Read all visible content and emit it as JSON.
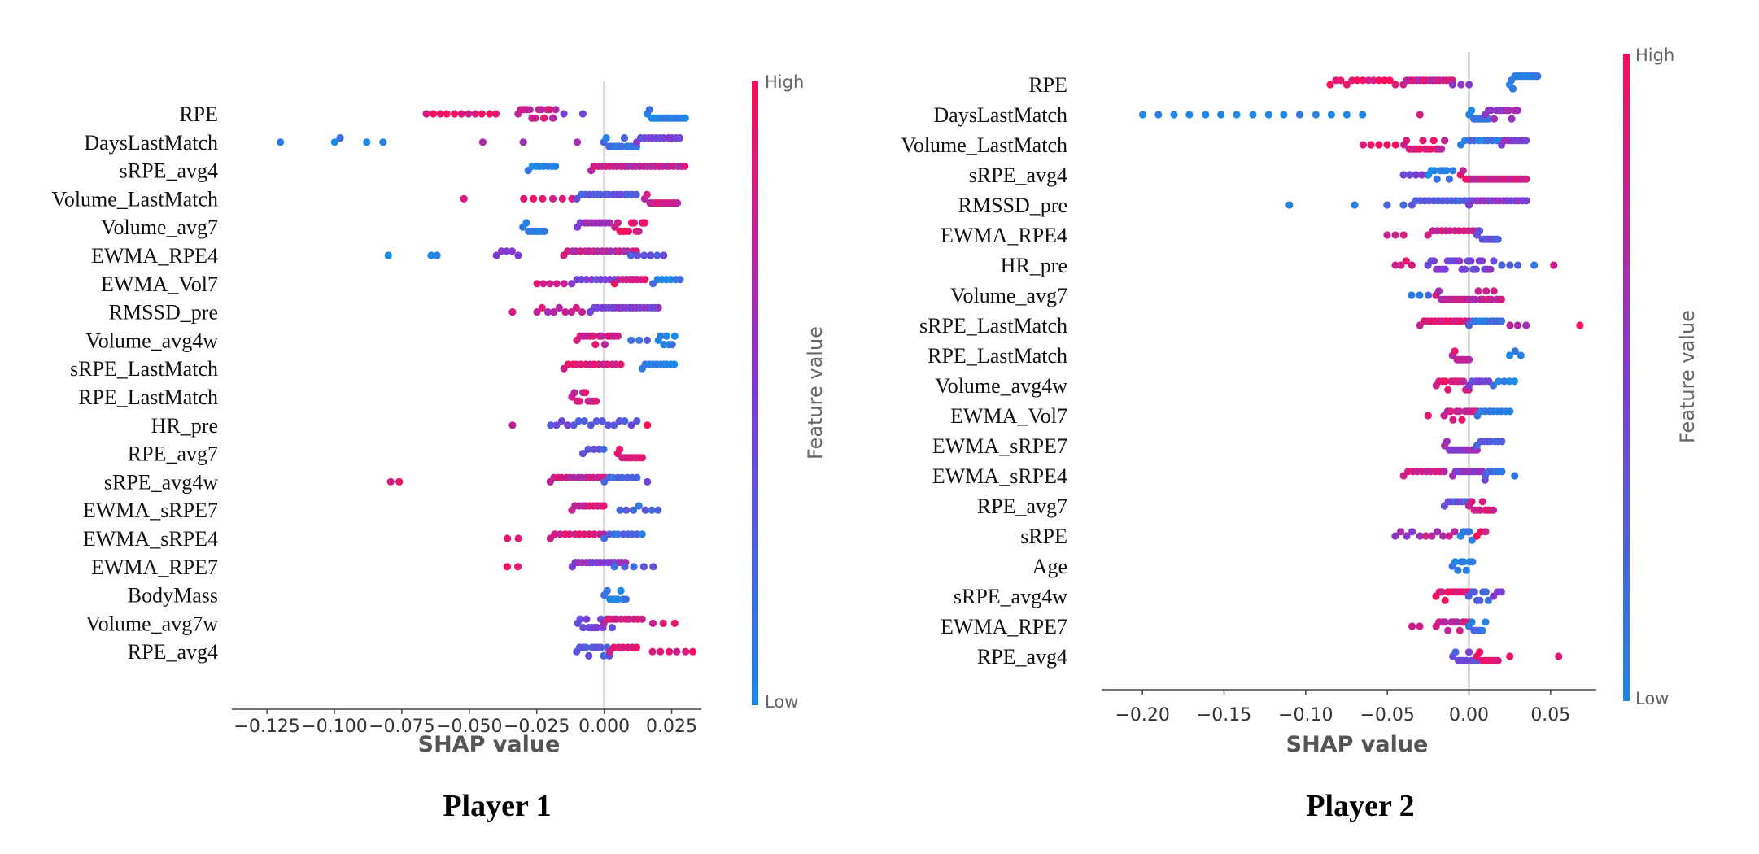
{
  "colors": {
    "low": "#1e88e5",
    "high": "#ff0d57",
    "axis": "#444444",
    "zero_line": "#d9d9d9"
  },
  "chart_data": [
    {
      "type": "scatter",
      "subtype": "shap-beeswarm",
      "title": "Player 1",
      "xlabel": "SHAP value",
      "colorbar": {
        "label": "Feature value",
        "high": "High",
        "low": "Low"
      },
      "xlim": [
        -0.138,
        0.036
      ],
      "xticks": [
        -0.125,
        -0.1,
        -0.075,
        -0.05,
        -0.025,
        0.0,
        0.025
      ],
      "xtick_labels": [
        "−0.125",
        "−0.100",
        "−0.075",
        "−0.050",
        "−0.025",
        "0.000",
        "0.025"
      ],
      "features": [
        {
          "name": "RPE",
          "groups": [
            [
              -0.066,
              -0.04,
              0.9,
              11
            ],
            [
              -0.032,
              -0.018,
              0.8,
              14
            ],
            [
              -0.015,
              -0.008,
              0.5,
              2
            ],
            [
              0.016,
              0.03,
              0.05,
              18
            ]
          ]
        },
        {
          "name": "DaysLastMatch",
          "groups": [
            [
              -0.12,
              -0.12,
              0.0,
              1
            ],
            [
              -0.1,
              -0.098,
              0.05,
              2
            ],
            [
              -0.088,
              -0.082,
              0.0,
              2
            ],
            [
              -0.045,
              -0.045,
              0.6,
              1
            ],
            [
              -0.03,
              -0.03,
              0.6,
              1
            ],
            [
              -0.01,
              -0.01,
              0.6,
              1
            ],
            [
              0.0,
              0.012,
              0.1,
              14
            ],
            [
              0.012,
              0.028,
              0.45,
              12
            ]
          ]
        },
        {
          "name": "sRPE_avg4",
          "groups": [
            [
              -0.028,
              -0.018,
              0.05,
              8
            ],
            [
              -0.005,
              0.03,
              0.75,
              26
            ]
          ]
        },
        {
          "name": "Volume_LastMatch",
          "groups": [
            [
              -0.052,
              -0.052,
              0.9,
              1
            ],
            [
              -0.03,
              -0.012,
              0.85,
              6
            ],
            [
              -0.01,
              0.012,
              0.3,
              16
            ],
            [
              0.015,
              0.027,
              0.8,
              14
            ]
          ]
        },
        {
          "name": "Volume_avg7",
          "groups": [
            [
              -0.03,
              -0.022,
              0.05,
              9
            ],
            [
              -0.01,
              0.002,
              0.55,
              10
            ],
            [
              0.004,
              0.015,
              0.9,
              12
            ]
          ]
        },
        {
          "name": "EWMA_RPE4",
          "groups": [
            [
              -0.08,
              -0.08,
              0.0,
              1
            ],
            [
              -0.064,
              -0.062,
              0.05,
              2
            ],
            [
              -0.04,
              -0.032,
              0.6,
              5
            ],
            [
              -0.015,
              0.012,
              0.75,
              18
            ],
            [
              0.01,
              0.022,
              0.35,
              6
            ]
          ]
        },
        {
          "name": "EWMA_Vol7",
          "groups": [
            [
              -0.025,
              -0.015,
              0.8,
              5
            ],
            [
              -0.012,
              0.004,
              0.45,
              10
            ],
            [
              0.004,
              0.015,
              0.85,
              9
            ],
            [
              0.018,
              0.028,
              0.1,
              7
            ]
          ]
        },
        {
          "name": "RMSSD_pre",
          "groups": [
            [
              -0.034,
              -0.034,
              0.85,
              1
            ],
            [
              -0.025,
              -0.008,
              0.75,
              9
            ],
            [
              -0.005,
              0.02,
              0.5,
              20
            ]
          ]
        },
        {
          "name": "Volume_avg4w",
          "groups": [
            [
              -0.01,
              0.005,
              0.8,
              14
            ],
            [
              0.01,
              0.016,
              0.2,
              3
            ],
            [
              0.02,
              0.026,
              0.05,
              7
            ]
          ]
        },
        {
          "name": "sRPE_LastMatch",
          "groups": [
            [
              -0.015,
              0.006,
              0.8,
              14
            ],
            [
              0.014,
              0.026,
              0.05,
              10
            ]
          ]
        },
        {
          "name": "RPE_LastMatch",
          "groups": [
            [
              -0.012,
              -0.003,
              0.8,
              10
            ]
          ]
        },
        {
          "name": "HR_pre",
          "groups": [
            [
              -0.034,
              -0.034,
              0.85,
              1
            ],
            [
              -0.02,
              0.012,
              0.35,
              16
            ],
            [
              0.016,
              0.016,
              0.9,
              1
            ]
          ]
        },
        {
          "name": "RPE_avg7",
          "groups": [
            [
              -0.008,
              0.0,
              0.3,
              5
            ],
            [
              0.005,
              0.014,
              0.9,
              11
            ]
          ]
        },
        {
          "name": "sRPE_avg4w",
          "groups": [
            [
              -0.079,
              -0.076,
              0.9,
              2
            ],
            [
              -0.02,
              0.002,
              0.8,
              16
            ],
            [
              0.0,
              0.012,
              0.2,
              8
            ],
            [
              0.016,
              0.016,
              0.55,
              1
            ]
          ]
        },
        {
          "name": "EWMA_sRPE7",
          "groups": [
            [
              -0.012,
              0.0,
              0.85,
              10
            ],
            [
              0.006,
              0.02,
              0.25,
              7
            ]
          ]
        },
        {
          "name": "EWMA_sRPE4",
          "groups": [
            [
              -0.036,
              -0.032,
              0.9,
              2
            ],
            [
              -0.02,
              0.0,
              0.85,
              12
            ],
            [
              0.0,
              0.014,
              0.2,
              9
            ]
          ]
        },
        {
          "name": "EWMA_RPE7",
          "groups": [
            [
              -0.036,
              -0.032,
              0.9,
              2
            ],
            [
              -0.012,
              0.008,
              0.55,
              16
            ],
            [
              0.004,
              0.018,
              0.25,
              5
            ]
          ]
        },
        {
          "name": "BodyMass",
          "groups": [
            [
              0.0,
              0.008,
              0.05,
              9
            ]
          ]
        },
        {
          "name": "Volume_avg7w",
          "groups": [
            [
              -0.01,
              0.004,
              0.4,
              14
            ],
            [
              0.0,
              0.014,
              0.8,
              10
            ],
            [
              0.018,
              0.026,
              0.9,
              3
            ]
          ]
        },
        {
          "name": "RPE_avg4",
          "groups": [
            [
              -0.01,
              0.002,
              0.3,
              12
            ],
            [
              0.002,
              0.012,
              0.85,
              7
            ],
            [
              0.018,
              0.033,
              0.9,
              6
            ]
          ]
        }
      ]
    },
    {
      "type": "scatter",
      "subtype": "shap-beeswarm",
      "title": "Player 2",
      "xlabel": "SHAP value",
      "colorbar": {
        "label": "Feature value",
        "high": "High",
        "low": "Low"
      },
      "xlim": [
        -0.225,
        0.078
      ],
      "xticks": [
        -0.2,
        -0.15,
        -0.1,
        -0.05,
        0.0,
        0.05
      ],
      "xtick_labels": [
        "−0.20",
        "−0.15",
        "−0.10",
        "−0.05",
        "0.00",
        "0.05"
      ],
      "features": [
        {
          "name": "RPE",
          "groups": [
            [
              -0.085,
              -0.045,
              0.9,
              13
            ],
            [
              -0.04,
              -0.01,
              0.8,
              16
            ],
            [
              -0.01,
              0.0,
              0.55,
              3
            ],
            [
              0.025,
              0.042,
              0.05,
              18
            ]
          ]
        },
        {
          "name": "DaysLastMatch",
          "groups": [
            [
              -0.2,
              -0.065,
              0.0,
              15
            ],
            [
              -0.03,
              -0.03,
              0.85,
              1
            ],
            [
              0.0,
              0.012,
              0.1,
              9
            ],
            [
              0.01,
              0.03,
              0.6,
              12
            ]
          ]
        },
        {
          "name": "Volume_LastMatch",
          "groups": [
            [
              -0.065,
              -0.045,
              0.9,
              5
            ],
            [
              -0.04,
              -0.015,
              0.85,
              16
            ],
            [
              -0.005,
              0.02,
              0.15,
              10
            ],
            [
              0.02,
              0.035,
              0.55,
              8
            ]
          ]
        },
        {
          "name": "sRPE_avg4",
          "groups": [
            [
              -0.04,
              -0.025,
              0.45,
              5
            ],
            [
              -0.025,
              -0.01,
              0.05,
              9
            ],
            [
              -0.005,
              0.035,
              0.8,
              28
            ]
          ]
        },
        {
          "name": "RMSSD_pre",
          "groups": [
            [
              -0.11,
              -0.11,
              0.05,
              1
            ],
            [
              -0.07,
              -0.07,
              0.05,
              1
            ],
            [
              -0.05,
              -0.04,
              0.1,
              2
            ],
            [
              -0.035,
              0.0,
              0.25,
              14
            ],
            [
              0.0,
              0.035,
              0.5,
              16
            ]
          ]
        },
        {
          "name": "EWMA_RPE4",
          "groups": [
            [
              -0.05,
              -0.04,
              0.9,
              3
            ],
            [
              -0.025,
              0.005,
              0.75,
              12
            ],
            [
              0.005,
              0.018,
              0.35,
              9
            ]
          ]
        },
        {
          "name": "HR_pre",
          "groups": [
            [
              -0.045,
              -0.035,
              0.85,
              4
            ],
            [
              -0.025,
              0.015,
              0.45,
              24
            ],
            [
              0.02,
              0.03,
              0.3,
              3
            ],
            [
              0.04,
              0.04,
              0.05,
              1
            ],
            [
              0.052,
              0.052,
              0.9,
              1
            ]
          ]
        },
        {
          "name": "Volume_avg7",
          "groups": [
            [
              -0.035,
              -0.02,
              0.15,
              4
            ],
            [
              -0.02,
              0.02,
              0.75,
              26
            ]
          ]
        },
        {
          "name": "sRPE_LastMatch",
          "groups": [
            [
              -0.03,
              0.0,
              0.85,
              14
            ],
            [
              0.0,
              0.02,
              0.15,
              10
            ],
            [
              0.025,
              0.035,
              0.65,
              3
            ],
            [
              0.068,
              0.068,
              0.9,
              1
            ]
          ]
        },
        {
          "name": "RPE_LastMatch",
          "groups": [
            [
              -0.01,
              0.0,
              0.8,
              8
            ],
            [
              0.025,
              0.032,
              0.05,
              3
            ]
          ]
        },
        {
          "name": "Volume_avg4w",
          "groups": [
            [
              -0.02,
              0.0,
              0.85,
              12
            ],
            [
              0.0,
              0.012,
              0.45,
              7
            ],
            [
              0.015,
              0.028,
              0.05,
              5
            ]
          ]
        },
        {
          "name": "EWMA_Vol7",
          "groups": [
            [
              -0.025,
              -0.025,
              0.85,
              1
            ],
            [
              -0.015,
              0.005,
              0.8,
              12
            ],
            [
              0.005,
              0.025,
              0.1,
              9
            ]
          ]
        },
        {
          "name": "EWMA_sRPE7",
          "groups": [
            [
              -0.015,
              0.005,
              0.6,
              14
            ],
            [
              0.005,
              0.02,
              0.25,
              8
            ]
          ]
        },
        {
          "name": "EWMA_sRPE4",
          "groups": [
            [
              -0.04,
              -0.015,
              0.8,
              10
            ],
            [
              -0.01,
              0.01,
              0.55,
              12
            ],
            [
              0.01,
              0.02,
              0.2,
              6
            ],
            [
              0.028,
              0.028,
              0.05,
              1
            ]
          ]
        },
        {
          "name": "RPE_avg7",
          "groups": [
            [
              -0.015,
              0.0,
              0.35,
              8
            ],
            [
              0.0,
              0.015,
              0.85,
              10
            ]
          ]
        },
        {
          "name": "sRPE",
          "groups": [
            [
              -0.045,
              -0.035,
              0.6,
              4
            ],
            [
              -0.03,
              -0.005,
              0.7,
              8
            ],
            [
              -0.005,
              0.002,
              0.05,
              5
            ],
            [
              0.005,
              0.01,
              0.9,
              3
            ]
          ]
        },
        {
          "name": "Age",
          "groups": [
            [
              -0.01,
              0.002,
              0.05,
              8
            ]
          ]
        },
        {
          "name": "sRPE_avg4w",
          "groups": [
            [
              -0.02,
              0.0,
              0.9,
              12
            ],
            [
              0.0,
              0.012,
              0.25,
              8
            ],
            [
              0.015,
              0.02,
              0.6,
              3
            ]
          ]
        },
        {
          "name": "EWMA_RPE7",
          "groups": [
            [
              -0.035,
              -0.03,
              0.9,
              2
            ],
            [
              -0.02,
              0.0,
              0.8,
              12
            ],
            [
              0.0,
              0.01,
              0.15,
              7
            ]
          ]
        },
        {
          "name": "RPE_avg4",
          "groups": [
            [
              -0.01,
              0.005,
              0.35,
              10
            ],
            [
              0.005,
              0.018,
              0.9,
              9
            ],
            [
              0.025,
              0.025,
              0.9,
              1
            ],
            [
              0.055,
              0.055,
              0.95,
              1
            ]
          ]
        }
      ]
    }
  ]
}
